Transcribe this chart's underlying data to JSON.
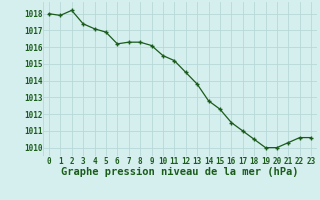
{
  "x": [
    0,
    1,
    2,
    3,
    4,
    5,
    6,
    7,
    8,
    9,
    10,
    11,
    12,
    13,
    14,
    15,
    16,
    17,
    18,
    19,
    20,
    21,
    22,
    23
  ],
  "y": [
    1018.0,
    1017.9,
    1018.2,
    1017.4,
    1017.1,
    1016.9,
    1016.2,
    1016.3,
    1016.3,
    1016.1,
    1015.5,
    1015.2,
    1014.5,
    1013.8,
    1012.8,
    1012.3,
    1011.5,
    1011.0,
    1010.5,
    1010.0,
    1010.0,
    1010.3,
    1010.6,
    1010.6
  ],
  "line_color": "#1a5c1a",
  "marker_color": "#1a5c1a",
  "bg_color": "#d5eeee",
  "grid_color": "#b8d8d8",
  "xlabel": "Graphe pression niveau de la mer (hPa)",
  "xlabel_color": "#1a5c1a",
  "tick_color": "#1a5c1a",
  "ylim": [
    1009.5,
    1018.7
  ],
  "yticks": [
    1010,
    1011,
    1012,
    1013,
    1014,
    1015,
    1016,
    1017,
    1018
  ],
  "xticks": [
    0,
    1,
    2,
    3,
    4,
    5,
    6,
    7,
    8,
    9,
    10,
    11,
    12,
    13,
    14,
    15,
    16,
    17,
    18,
    19,
    20,
    21,
    22,
    23
  ],
  "tick_fontsize": 5.5,
  "xlabel_fontsize": 7.5
}
